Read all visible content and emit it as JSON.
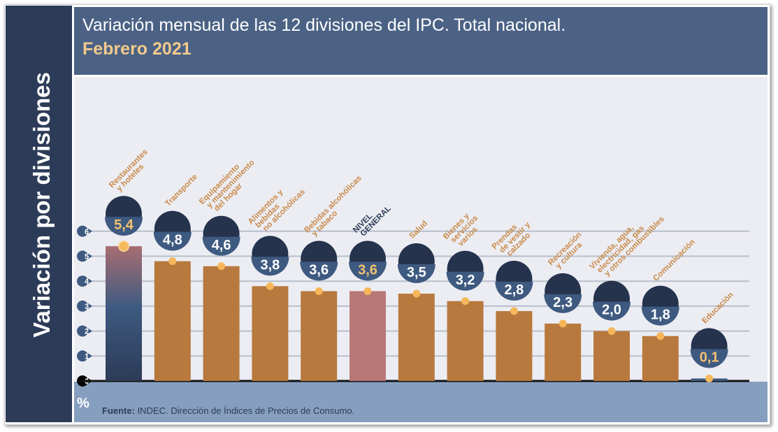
{
  "side_title": "Variación por divisiones",
  "header": {
    "title": "Variación mensual de las 12 divisiones del IPC. Total nacional.",
    "subtitle": "Febrero 2021"
  },
  "footer": {
    "unit": "%",
    "source_label": "Fuente:",
    "source_text": " INDEC. Dirección de Índices de Precios de Consumo."
  },
  "colors": {
    "bar": "#b8793e",
    "highlight_bar_top": "#a86e72",
    "highlight_bar_bottom": "#2c3b57",
    "general_bar": "#b87878",
    "dot": "#f5b75a",
    "label": "#c98a4a",
    "bubble": "#3e5a80"
  },
  "chart_data": {
    "type": "bar",
    "title": "Variación mensual de las 12 divisiones del IPC. Total nacional.",
    "subtitle": "Febrero 2021",
    "ylabel": "%",
    "ylim": [
      0,
      6
    ],
    "yticks": [
      "0",
      "1",
      "2",
      "3",
      "4",
      "5",
      "6"
    ],
    "grid": true,
    "categories": [
      {
        "label": [
          "Restaurantes",
          "y hoteles"
        ],
        "value": 5.4,
        "display": "5,4",
        "icon": "restaurant-icon"
      },
      {
        "label": [
          "Transporte"
        ],
        "value": 4.8,
        "display": "4,8",
        "icon": "bus-icon"
      },
      {
        "label": [
          "Equipamiento",
          "y mantenimiento",
          "del hogar"
        ],
        "value": 4.6,
        "display": "4,6",
        "icon": "washing-machine-icon"
      },
      {
        "label": [
          "Alimentos y",
          "bebidas",
          "no alcohólicas"
        ],
        "value": 3.8,
        "display": "3,8",
        "icon": "roast-chicken-icon"
      },
      {
        "label": [
          "Bebidas alcohólicas",
          "y tabaco"
        ],
        "value": 3.6,
        "display": "3,6",
        "icon": "bottle-icon"
      },
      {
        "label": [
          "NIVEL",
          "GENERAL"
        ],
        "value": 3.6,
        "display": "3,6",
        "icon": "shopping-basket-icon",
        "general": true
      },
      {
        "label": [
          "Salud"
        ],
        "value": 3.5,
        "display": "3,5",
        "icon": "first-aid-icon"
      },
      {
        "label": [
          "Bienes y",
          "servicios",
          "varios"
        ],
        "value": 3.2,
        "display": "3,2",
        "icon": "scissors-comb-icon"
      },
      {
        "label": [
          "Prendas",
          "de vestir y",
          "calzado"
        ],
        "value": 2.8,
        "display": "2,8",
        "icon": "tshirt-icon"
      },
      {
        "label": [
          "Recreación",
          "y cultura"
        ],
        "value": 2.3,
        "display": "2,3",
        "icon": "beach-icon"
      },
      {
        "label": [
          "Vivienda, agua,",
          "electricidad, gas",
          "y otros combustibles"
        ],
        "value": 2.0,
        "display": "2,0",
        "icon": "lightbulb-icon"
      },
      {
        "label": [
          "Comunicación"
        ],
        "value": 1.8,
        "display": "1,8",
        "icon": "phone-icon"
      },
      {
        "label": [
          "Educación"
        ],
        "value": 0.1,
        "display": "0,1",
        "icon": "book-icon"
      }
    ]
  }
}
